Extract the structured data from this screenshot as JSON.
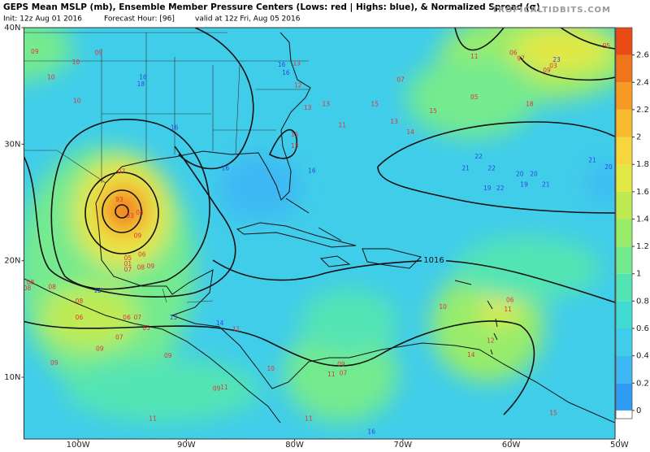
{
  "header": {
    "title": "GEPS Mean MSLP (mb), Ensemble Member Pressure Centers (Lows: red | Highs: blue), & Normalized Spread (σ)",
    "init": "Init: 12z Aug 01 2016",
    "forecast": "Forecast Hour: [96]",
    "valid": "valid at 12z Fri, Aug 05 2016",
    "watermark": "TROPICALTIDBITS.COM"
  },
  "map": {
    "xlim": [
      -105,
      -50.4
    ],
    "ylim": [
      4.7,
      40
    ],
    "xticks": [
      {
        "value": -100,
        "label": "100W"
      },
      {
        "value": -90,
        "label": "90W"
      },
      {
        "value": -80,
        "label": "80W"
      },
      {
        "value": -70,
        "label": "70W"
      },
      {
        "value": -60,
        "label": "60W"
      },
      {
        "value": -50,
        "label": "50W"
      }
    ],
    "yticks": [
      {
        "value": 10,
        "label": "10N"
      },
      {
        "value": 20,
        "label": "20N"
      },
      {
        "value": 30,
        "label": "30N"
      },
      {
        "value": 40,
        "label": "40N"
      }
    ],
    "isobar_label": "1016",
    "low_color": "#e0323c",
    "high_color": "#2a48dc",
    "centers": [
      {
        "label": "09",
        "kind": "low",
        "lon": -104.0,
        "lat": 37.9
      },
      {
        "label": "10",
        "kind": "low",
        "lon": -102.5,
        "lat": 35.7
      },
      {
        "label": "10",
        "kind": "low",
        "lon": -100.2,
        "lat": 37.0
      },
      {
        "label": "10",
        "kind": "low",
        "lon": -100.1,
        "lat": 33.7
      },
      {
        "label": "09",
        "kind": "low",
        "lon": -98.1,
        "lat": 37.8
      },
      {
        "label": "12",
        "kind": "low",
        "lon": -79.7,
        "lat": 35.0
      },
      {
        "label": "13",
        "kind": "low",
        "lon": -79.8,
        "lat": 36.9
      },
      {
        "label": "13",
        "kind": "low",
        "lon": -77.1,
        "lat": 33.4
      },
      {
        "label": "13",
        "kind": "low",
        "lon": -78.8,
        "lat": 33.1
      },
      {
        "label": "15",
        "kind": "low",
        "lon": -72.6,
        "lat": 33.4
      },
      {
        "label": "13",
        "kind": "low",
        "lon": -70.8,
        "lat": 31.9
      },
      {
        "label": "15",
        "kind": "low",
        "lon": -67.2,
        "lat": 32.8
      },
      {
        "label": "07",
        "kind": "low",
        "lon": -70.2,
        "lat": 35.5
      },
      {
        "label": "11",
        "kind": "low",
        "lon": -63.4,
        "lat": 37.5
      },
      {
        "label": "06",
        "kind": "low",
        "lon": -59.8,
        "lat": 37.8
      },
      {
        "label": "97",
        "kind": "low",
        "lon": -59.1,
        "lat": 37.3
      },
      {
        "label": "03",
        "kind": "low",
        "lon": -56.1,
        "lat": 36.7
      },
      {
        "label": "09",
        "kind": "low",
        "lon": -56.7,
        "lat": 36.3
      },
      {
        "label": "95",
        "kind": "low",
        "lon": -51.2,
        "lat": 38.4
      },
      {
        "label": "05",
        "kind": "low",
        "lon": -63.4,
        "lat": 34.0
      },
      {
        "label": "18",
        "kind": "low",
        "lon": -58.3,
        "lat": 33.4
      },
      {
        "label": "14",
        "kind": "low",
        "lon": -69.3,
        "lat": 31.0
      },
      {
        "label": "15",
        "kind": "low",
        "lon": -80.0,
        "lat": 30.8
      },
      {
        "label": "13",
        "kind": "low",
        "lon": -80.0,
        "lat": 29.8
      },
      {
        "label": "11",
        "kind": "low",
        "lon": -75.6,
        "lat": 31.6
      },
      {
        "label": "07",
        "kind": "low",
        "lon": -96.0,
        "lat": 27.6
      },
      {
        "label": "93",
        "kind": "low",
        "lon": -96.2,
        "lat": 25.2
      },
      {
        "label": "93",
        "kind": "low",
        "lon": -95.2,
        "lat": 23.8
      },
      {
        "label": "04",
        "kind": "low",
        "lon": -94.3,
        "lat": 24.1
      },
      {
        "label": "09",
        "kind": "low",
        "lon": -94.5,
        "lat": 22.1
      },
      {
        "label": "05",
        "kind": "low",
        "lon": -95.4,
        "lat": 20.2
      },
      {
        "label": "06",
        "kind": "low",
        "lon": -94.1,
        "lat": 20.5
      },
      {
        "label": "01",
        "kind": "low",
        "lon": -95.4,
        "lat": 19.7
      },
      {
        "label": "07",
        "kind": "low",
        "lon": -95.4,
        "lat": 19.2
      },
      {
        "label": "08",
        "kind": "low",
        "lon": -94.2,
        "lat": 19.4
      },
      {
        "label": "09",
        "kind": "low",
        "lon": -93.3,
        "lat": 19.5
      },
      {
        "label": "08",
        "kind": "low",
        "lon": -104.7,
        "lat": 17.6
      },
      {
        "label": "08",
        "kind": "low",
        "lon": -104.4,
        "lat": 18.1
      },
      {
        "label": "08",
        "kind": "low",
        "lon": -102.4,
        "lat": 17.7
      },
      {
        "label": "08",
        "kind": "low",
        "lon": -99.9,
        "lat": 16.5
      },
      {
        "label": "06",
        "kind": "low",
        "lon": -99.9,
        "lat": 15.1
      },
      {
        "label": "06",
        "kind": "low",
        "lon": -95.5,
        "lat": 15.1
      },
      {
        "label": "07",
        "kind": "low",
        "lon": -94.5,
        "lat": 15.1
      },
      {
        "label": "05",
        "kind": "low",
        "lon": -93.7,
        "lat": 14.2
      },
      {
        "label": "07",
        "kind": "low",
        "lon": -96.2,
        "lat": 13.4
      },
      {
        "label": "09",
        "kind": "low",
        "lon": -98.0,
        "lat": 12.4
      },
      {
        "label": "09",
        "kind": "low",
        "lon": -91.7,
        "lat": 11.8
      },
      {
        "label": "09",
        "kind": "low",
        "lon": -102.2,
        "lat": 11.2
      },
      {
        "label": "10",
        "kind": "low",
        "lon": -82.2,
        "lat": 10.7
      },
      {
        "label": "11",
        "kind": "low",
        "lon": -85.4,
        "lat": 14.1
      },
      {
        "label": "09",
        "kind": "low",
        "lon": -87.2,
        "lat": 9.0
      },
      {
        "label": "11",
        "kind": "low",
        "lon": -86.5,
        "lat": 9.1
      },
      {
        "label": "11",
        "kind": "low",
        "lon": -93.1,
        "lat": 6.4
      },
      {
        "label": "11",
        "kind": "low",
        "lon": -78.7,
        "lat": 6.4
      },
      {
        "label": "09",
        "kind": "low",
        "lon": -75.7,
        "lat": 11.1
      },
      {
        "label": "07",
        "kind": "low",
        "lon": -75.5,
        "lat": 10.3
      },
      {
        "label": "11",
        "kind": "low",
        "lon": -76.6,
        "lat": 10.2
      },
      {
        "label": "10",
        "kind": "low",
        "lon": -66.3,
        "lat": 16.0
      },
      {
        "label": "06",
        "kind": "low",
        "lon": -60.1,
        "lat": 16.6
      },
      {
        "label": "11",
        "kind": "low",
        "lon": -60.3,
        "lat": 15.8
      },
      {
        "label": "12",
        "kind": "low",
        "lon": -61.9,
        "lat": 13.1
      },
      {
        "label": "14",
        "kind": "low",
        "lon": -63.7,
        "lat": 11.9
      },
      {
        "label": "15",
        "kind": "low",
        "lon": -56.1,
        "lat": 6.9
      },
      {
        "label": "16",
        "kind": "high",
        "lon": -94.0,
        "lat": 35.7
      },
      {
        "label": "18",
        "kind": "high",
        "lon": -94.2,
        "lat": 35.1
      },
      {
        "label": "16",
        "kind": "high",
        "lon": -91.1,
        "lat": 31.4
      },
      {
        "label": "16",
        "kind": "high",
        "lon": -86.4,
        "lat": 27.9
      },
      {
        "label": "16",
        "kind": "high",
        "lon": -81.2,
        "lat": 36.8
      },
      {
        "label": "16",
        "kind": "high",
        "lon": -80.8,
        "lat": 36.1
      },
      {
        "label": "16",
        "kind": "high",
        "lon": -78.4,
        "lat": 27.7
      },
      {
        "label": "22",
        "kind": "high",
        "lon": -63.0,
        "lat": 28.9
      },
      {
        "label": "21",
        "kind": "high",
        "lon": -64.2,
        "lat": 27.9
      },
      {
        "label": "22",
        "kind": "high",
        "lon": -61.8,
        "lat": 27.9
      },
      {
        "label": "20",
        "kind": "high",
        "lon": -59.2,
        "lat": 27.4
      },
      {
        "label": "20",
        "kind": "high",
        "lon": -57.9,
        "lat": 27.4
      },
      {
        "label": "19",
        "kind": "high",
        "lon": -58.8,
        "lat": 26.5
      },
      {
        "label": "21",
        "kind": "high",
        "lon": -56.8,
        "lat": 26.5
      },
      {
        "label": "19",
        "kind": "high",
        "lon": -62.2,
        "lat": 26.2
      },
      {
        "label": "22",
        "kind": "high",
        "lon": -61.0,
        "lat": 26.2
      },
      {
        "label": "21",
        "kind": "high",
        "lon": -52.5,
        "lat": 28.6
      },
      {
        "label": "20",
        "kind": "high",
        "lon": -51.0,
        "lat": 28.0
      },
      {
        "label": "23",
        "kind": "high",
        "lon": -55.8,
        "lat": 37.2
      },
      {
        "label": "12",
        "kind": "high",
        "lon": -98.2,
        "lat": 17.4
      },
      {
        "label": "13",
        "kind": "high",
        "lon": -91.2,
        "lat": 15.1
      },
      {
        "label": "14",
        "kind": "high",
        "lon": -86.9,
        "lat": 14.6
      },
      {
        "label": "16",
        "kind": "high",
        "lon": -72.9,
        "lat": 5.3
      }
    ]
  },
  "colorbar": {
    "lim": [
      -0.06,
      2.8
    ],
    "ticks": [
      0,
      0.2,
      0.4,
      0.6,
      0.8,
      1,
      1.2,
      1.4,
      1.6,
      1.8,
      2,
      2.2,
      2.4,
      2.6
    ],
    "colors": [
      "#2e9cf2",
      "#3cb8f4",
      "#40cdea",
      "#41dbd6",
      "#52e4b4",
      "#74ea8e",
      "#98ec6a",
      "#bfeb52",
      "#e2e844",
      "#f6d63c",
      "#f8bb30",
      "#f69a24",
      "#f07418",
      "#ea4a14"
    ]
  }
}
